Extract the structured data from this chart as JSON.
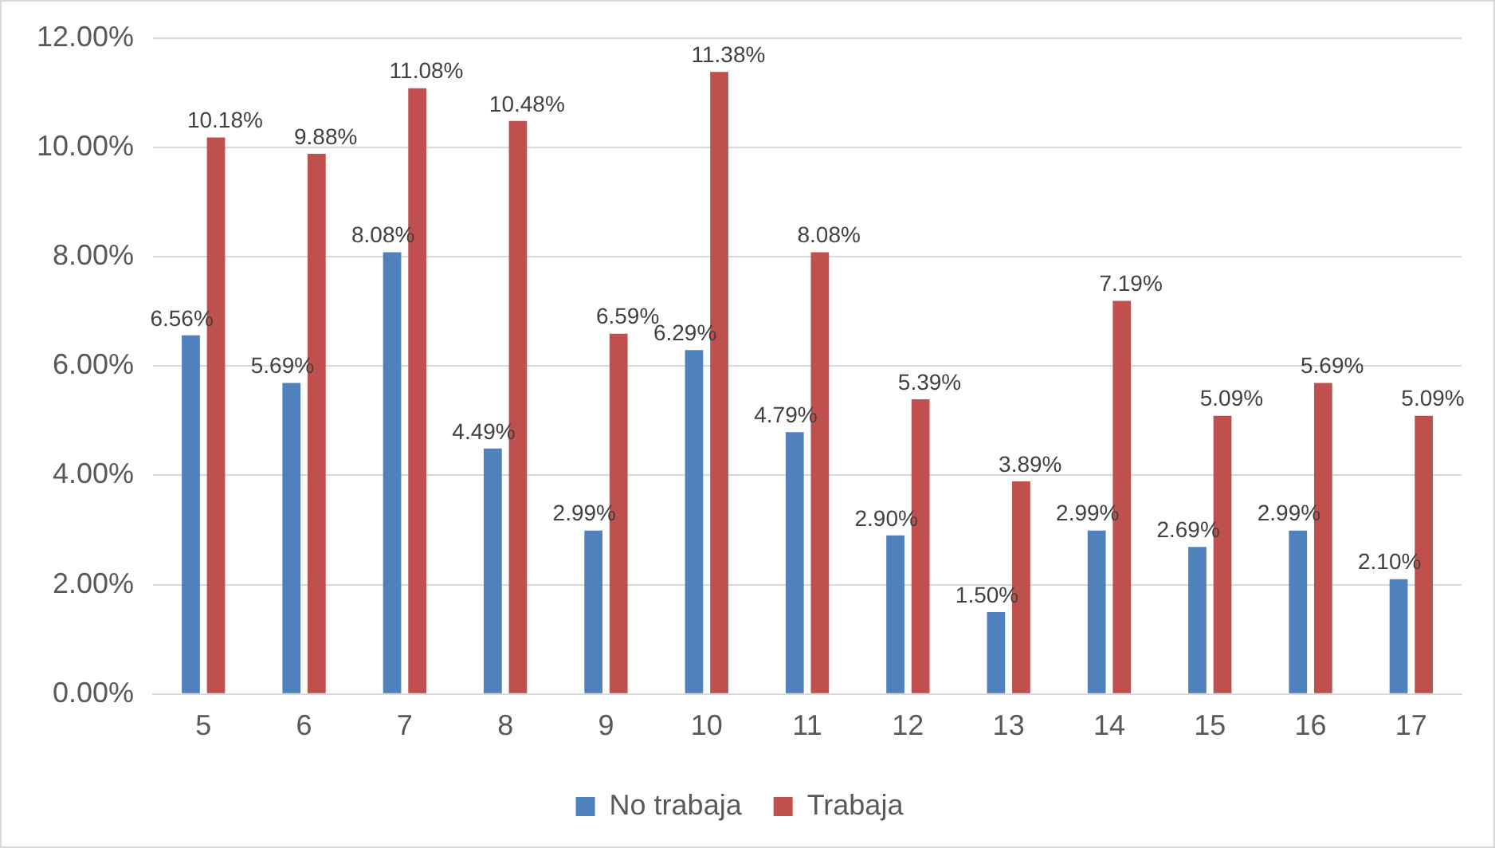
{
  "chart_data": {
    "type": "bar",
    "categories": [
      "5",
      "6",
      "7",
      "8",
      "9",
      "10",
      "11",
      "12",
      "13",
      "14",
      "15",
      "16",
      "17"
    ],
    "series": [
      {
        "name": "No trabaja",
        "color": "#4f81bd",
        "values": [
          6.56,
          5.69,
          8.08,
          4.49,
          2.99,
          6.29,
          4.79,
          2.9,
          1.5,
          2.99,
          2.69,
          2.99,
          2.1
        ],
        "value_labels": [
          "6.56%",
          "5.69%",
          "8.08%",
          "4.49%",
          "2.99%",
          "6.29%",
          "4.79%",
          "2.90%",
          "1.50%",
          "2.99%",
          "2.69%",
          "2.99%",
          "2.10%"
        ]
      },
      {
        "name": "Trabaja",
        "color": "#c0504d",
        "values": [
          10.18,
          9.88,
          11.08,
          10.48,
          6.59,
          11.38,
          8.08,
          5.39,
          3.89,
          7.19,
          5.09,
          5.69,
          5.09
        ],
        "value_labels": [
          "10.18%",
          "9.88%",
          "11.08%",
          "10.48%",
          "6.59%",
          "11.38%",
          "8.08%",
          "5.39%",
          "3.89%",
          "7.19%",
          "5.09%",
          "5.69%",
          "5.09%"
        ]
      }
    ],
    "ylim": [
      0,
      12
    ],
    "yticks": [
      {
        "value": 0,
        "label": "0.00%"
      },
      {
        "value": 2,
        "label": "2.00%"
      },
      {
        "value": 4,
        "label": "4.00%"
      },
      {
        "value": 6,
        "label": "6.00%"
      },
      {
        "value": 8,
        "label": "8.00%"
      },
      {
        "value": 10,
        "label": "10.00%"
      },
      {
        "value": 12,
        "label": "12.00%"
      }
    ],
    "grid": "y",
    "legend": "bottom"
  }
}
